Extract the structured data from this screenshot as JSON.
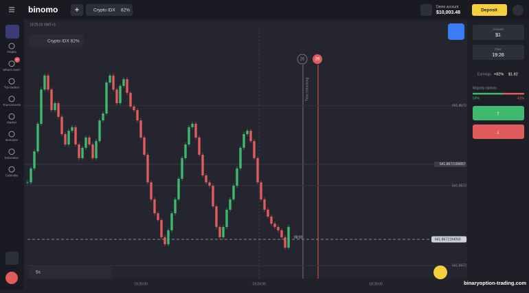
{
  "header": {
    "logo": "binomo",
    "asset": "Crypto IDX",
    "payout": "82%",
    "account": "Demo account",
    "balance": "$10,003.48",
    "deposit": "Deposit"
  },
  "sidebar": {
    "items": [
      "Trades",
      "What's new?",
      "Top traders",
      "Tournaments",
      "Market",
      "Bonuses",
      "Education",
      "Calendar"
    ],
    "badge": "9+"
  },
  "chart": {
    "clock": "19:25:03 GMT+3",
    "asset_label": "Crypto IDX 82%",
    "timeframe": "5s",
    "timer": "00:01",
    "time_remaining": "Time remaining",
    "countdown": "26",
    "countdown_red": "26",
    "ylim": [
      0,
      100
    ],
    "yticks": [
      {
        "value": 67,
        "label": "641.8672"
      },
      {
        "value": 36,
        "label": "641.8672"
      },
      {
        "value": 5,
        "label": "641.8672"
      }
    ],
    "highlight": {
      "value": 44.3,
      "label": "641.8672199657"
    },
    "current": {
      "value": 15.2,
      "label": "641.8672194050"
    },
    "xticks": [
      "19:20:00",
      "19:24:00",
      "19:28:00"
    ],
    "closes": [
      37.3,
      42.7,
      49.3,
      60,
      73.3,
      78.7,
      73.3,
      65.3,
      68,
      62.7,
      56,
      52,
      57.3,
      58.7,
      52,
      46.7,
      50.7,
      54.7,
      52,
      46.7,
      53.3,
      61.3,
      64,
      76,
      78.7,
      73.3,
      68,
      74.7,
      77.3,
      72,
      66.7,
      65.3,
      61.3,
      54.7,
      48,
      37.3,
      30.7,
      25.3,
      22.7,
      16,
      13.3,
      18.7,
      25.3,
      30.7,
      38.7,
      46.7,
      52,
      58.7,
      60,
      54.7,
      48,
      40,
      37.3,
      36,
      28,
      20,
      16,
      20,
      26.7,
      30.7,
      36,
      42.7,
      50.7,
      56,
      57.3,
      53.3,
      46.7,
      37.3,
      30.7,
      26.7,
      24,
      21.3,
      20,
      18.7,
      16,
      12,
      20
    ]
  },
  "panel": {
    "amount_label": "Amount",
    "amount": "$1",
    "time_label": "Time",
    "time": "19:26",
    "earnings_label": "Earnings",
    "earnings_pct": "+82%",
    "earnings": "$1.82",
    "opinion_label": "Majority opinion",
    "up": 59,
    "down": 41,
    "up_label": "59%",
    "down_label": "41%"
  },
  "watermark": "binaryoption-trading.com"
}
